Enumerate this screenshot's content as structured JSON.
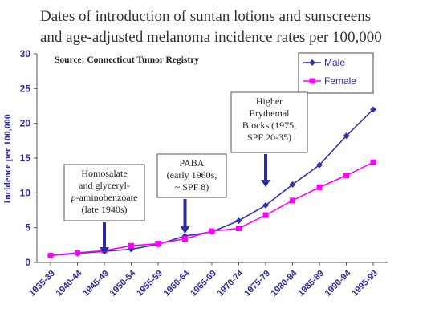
{
  "chart_data": {
    "type": "line",
    "title_lines": [
      "Dates of introduction of suntan lotions and sunscreens",
      "and age-adjusted melanoma incidence rates per 100,000"
    ],
    "source": "Source: Connecticut Tumor Registry",
    "ylabel": "Incidence per 100,000",
    "xlabel": "",
    "ylim": [
      0,
      30
    ],
    "yticks": [
      0,
      5,
      10,
      15,
      20,
      25,
      30
    ],
    "categories": [
      "1935-39",
      "1940-44",
      "1945-49",
      "1950-54",
      "1955-59",
      "1960-64",
      "1965-69",
      "1970-74",
      "1975-79",
      "1980-84",
      "1985-89",
      "1990-94",
      "1995-99"
    ],
    "grid": false,
    "legend_position": "top-right",
    "series": [
      {
        "name": "Male",
        "color": "#3333aa",
        "marker": "diamond",
        "values": [
          1.0,
          1.3,
          1.6,
          1.9,
          2.6,
          3.8,
          4.4,
          6.0,
          8.2,
          11.2,
          14.0,
          18.2,
          22.0
        ]
      },
      {
        "name": "Female",
        "color": "#ff00ff",
        "marker": "square",
        "values": [
          1.0,
          1.4,
          1.7,
          2.4,
          2.7,
          3.4,
          4.5,
          4.9,
          6.8,
          8.9,
          10.8,
          12.5,
          14.4
        ]
      }
    ],
    "annotations": [
      {
        "lines": [
          "Homosalate",
          "and glyceryl-",
          "p-aminobenzoate",
          "(late 1940s)"
        ],
        "italic_prefix": "p",
        "category_index": 2,
        "arrow_tip_y": 1.6
      },
      {
        "lines": [
          "PABA",
          "(early 1960s,",
          "~ SPF 8)"
        ],
        "category_index": 5,
        "arrow_tip_y": 4.6
      },
      {
        "lines": [
          "Higher",
          "Erythemal",
          "Blocks (1975,",
          "SPF 20-35)"
        ],
        "category_index": 8,
        "arrow_tip_y": 11.3
      }
    ],
    "arrow_color": "#2a2a9c"
  }
}
